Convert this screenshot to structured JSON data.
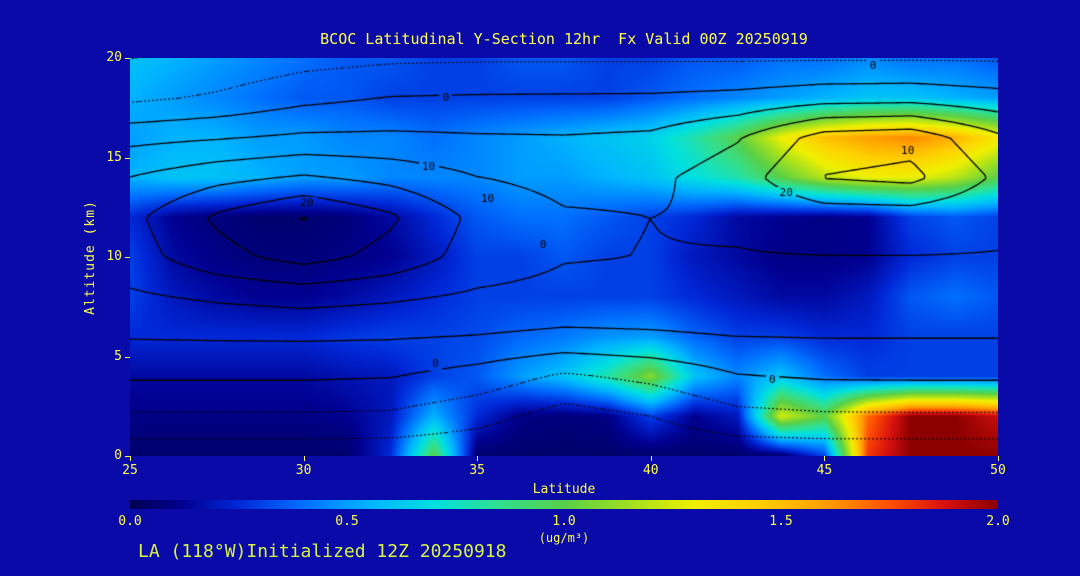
{
  "footer": "LA (118°W)Initialized 12Z 20250918",
  "colors": {
    "background": "#0a0aa8",
    "title_text": "#ffff50",
    "axis_text": "#ffff50",
    "footer_text": "#d8f544",
    "contour_line": "#000000"
  },
  "axes": {
    "x": {
      "label": "Latitude",
      "min": 25,
      "max": 50,
      "ticks": [
        25,
        30,
        35,
        40,
        45,
        50
      ]
    },
    "y": {
      "label": "Altitude (km)",
      "min": 0,
      "max": 20,
      "ticks": [
        0,
        5,
        10,
        15,
        20
      ]
    }
  },
  "colorbar": {
    "min": 0,
    "max": 2,
    "ticks": [
      "0.0",
      "0.5",
      "1.0",
      "1.5",
      "2.0"
    ],
    "unit": "(ug/m³)",
    "stops": [
      {
        "v": 0.0,
        "c": "#000050"
      },
      {
        "v": 0.12,
        "c": "#000090"
      },
      {
        "v": 0.25,
        "c": "#0028d8"
      },
      {
        "v": 0.4,
        "c": "#0070ff"
      },
      {
        "v": 0.55,
        "c": "#00b4ff"
      },
      {
        "v": 0.7,
        "c": "#00e0e0"
      },
      {
        "v": 0.85,
        "c": "#30e090"
      },
      {
        "v": 1.0,
        "c": "#58d048"
      },
      {
        "v": 1.15,
        "c": "#a0e020"
      },
      {
        "v": 1.3,
        "c": "#f0f000"
      },
      {
        "v": 1.45,
        "c": "#ffd000"
      },
      {
        "v": 1.6,
        "c": "#ffa000"
      },
      {
        "v": 1.75,
        "c": "#ff5000"
      },
      {
        "v": 1.88,
        "c": "#d81010"
      },
      {
        "v": 2.0,
        "c": "#8c0000"
      }
    ]
  },
  "chart_data": {
    "type": "heatmap",
    "title": "BCOC Latitudinal Y-Section 12hr  Fx Valid 00Z 20250919",
    "xlabel": "Latitude",
    "ylabel": "Altitude (km)",
    "fill_units": "ug/m³",
    "fill_range": [
      0,
      2
    ],
    "x": [
      25,
      26.25,
      27.5,
      28.75,
      30,
      31.25,
      32.5,
      33.75,
      35,
      36.25,
      37.5,
      38.75,
      40,
      41.25,
      42.5,
      43.75,
      45,
      46.25,
      47.5,
      48.75,
      50
    ],
    "y": [
      0,
      2,
      4,
      6,
      8,
      10,
      12,
      14,
      16,
      18,
      20
    ],
    "values": [
      [
        0.05,
        0.05,
        0.05,
        0.05,
        0.05,
        0.05,
        0.25,
        1.0,
        0.05,
        0.05,
        0.05,
        0.05,
        0.05,
        0.05,
        0.05,
        0.05,
        0.3,
        1.8,
        2.0,
        2.0,
        2.0
      ],
      [
        0.1,
        0.1,
        0.1,
        0.1,
        0.1,
        0.12,
        0.2,
        0.55,
        0.25,
        0.1,
        0.08,
        0.1,
        0.3,
        0.12,
        0.2,
        1.25,
        1.0,
        1.7,
        2.0,
        2.0,
        1.9
      ],
      [
        0.15,
        0.15,
        0.15,
        0.15,
        0.15,
        0.18,
        0.2,
        0.3,
        0.35,
        0.5,
        0.6,
        0.8,
        1.1,
        0.6,
        0.45,
        0.6,
        0.4,
        0.3,
        0.3,
        0.3,
        0.3
      ],
      [
        0.25,
        0.25,
        0.25,
        0.25,
        0.25,
        0.28,
        0.3,
        0.3,
        0.32,
        0.38,
        0.42,
        0.48,
        0.5,
        0.38,
        0.3,
        0.3,
        0.25,
        0.25,
        0.3,
        0.3,
        0.3
      ],
      [
        0.3,
        0.2,
        0.15,
        0.12,
        0.12,
        0.15,
        0.2,
        0.25,
        0.3,
        0.3,
        0.3,
        0.3,
        0.3,
        0.25,
        0.2,
        0.15,
        0.15,
        0.2,
        0.35,
        0.4,
        0.35
      ],
      [
        0.3,
        0.15,
        0.1,
        0.08,
        0.08,
        0.1,
        0.12,
        0.2,
        0.3,
        0.3,
        0.35,
        0.3,
        0.3,
        0.2,
        0.15,
        0.1,
        0.1,
        0.12,
        0.25,
        0.3,
        0.3
      ],
      [
        0.25,
        0.12,
        0.08,
        0.06,
        0.06,
        0.08,
        0.15,
        0.25,
        0.35,
        0.4,
        0.4,
        0.35,
        0.3,
        0.25,
        0.15,
        0.12,
        0.1,
        0.12,
        0.3,
        0.35,
        0.3
      ],
      [
        0.55,
        0.6,
        0.6,
        0.55,
        0.5,
        0.5,
        0.45,
        0.45,
        0.45,
        0.5,
        0.5,
        0.55,
        0.6,
        0.7,
        0.8,
        1.0,
        1.2,
        1.3,
        1.3,
        1.2,
        1.0
      ],
      [
        0.5,
        0.55,
        0.55,
        0.5,
        0.5,
        0.45,
        0.45,
        0.4,
        0.45,
        0.5,
        0.55,
        0.6,
        0.65,
        0.8,
        1.0,
        1.3,
        1.5,
        1.6,
        1.65,
        1.55,
        1.35
      ],
      [
        0.55,
        0.5,
        0.45,
        0.4,
        0.35,
        0.35,
        0.3,
        0.3,
        0.3,
        0.3,
        0.3,
        0.3,
        0.35,
        0.4,
        0.45,
        0.5,
        0.55,
        0.6,
        0.6,
        0.55,
        0.5
      ],
      [
        0.6,
        0.55,
        0.5,
        0.45,
        0.4,
        0.35,
        0.35,
        0.3,
        0.3,
        0.35,
        0.35,
        0.3,
        0.3,
        0.35,
        0.35,
        0.4,
        0.4,
        0.45,
        0.4,
        0.4,
        0.35
      ]
    ],
    "overlay_contours": {
      "x": [
        25,
        27.5,
        30,
        32.5,
        35,
        37.5,
        40,
        42.5,
        45,
        47.5,
        50
      ],
      "y": [
        0,
        2,
        4,
        6,
        8,
        10,
        12,
        14,
        16,
        18,
        20
      ],
      "values": [
        [
          -13.3,
          -13.3,
          -13.3,
          -13.4,
          -13.8,
          -14.6,
          -14.2,
          -13.5,
          -13.3,
          -13.3,
          -13.3
        ],
        [
          -5.6,
          -5.6,
          -5.6,
          -5.9,
          -8.3,
          -12.0,
          -10.0,
          -6.5,
          -5.7,
          -5.6,
          -5.6
        ],
        [
          0.6,
          0.6,
          0.6,
          0.2,
          -2.1,
          -5.8,
          -3.8,
          -0.3,
          0.5,
          0.6,
          0.6
        ],
        [
          5.3,
          5.5,
          5.6,
          5.4,
          4.8,
          3.9,
          4.3,
          5.0,
          5.2,
          5.2,
          5.2
        ],
        [
          9.2,
          10.8,
          11.8,
          10.8,
          9.2,
          8.5,
          8.3,
          8.3,
          8.3,
          8.3,
          8.3
        ],
        [
          12.8,
          18.3,
          21.9,
          18.3,
          12.8,
          10.3,
          9.9,
          9.8,
          9.9,
          9.9,
          9.8
        ],
        [
          13.7,
          20.8,
          25.3,
          20.8,
          13.7,
          10.5,
          10.0,
          10.6,
          12.2,
          12.4,
          11.0
        ],
        [
          10.1,
          13.5,
          15.6,
          13.5,
          10.1,
          8.6,
          8.9,
          12.7,
          20.2,
          21.3,
          14.1
        ],
        [
          3.5,
          4.6,
          5.9,
          6.0,
          5.5,
          5.3,
          5.9,
          9.6,
          17.1,
          18.2,
          11.0
        ],
        [
          -6.1,
          -4.3,
          -1.4,
          0.2,
          0.5,
          0.6,
          0.7,
          1.4,
          2.9,
          3.2,
          1.7
        ],
        [
          -10.1,
          -8.9,
          -6.9,
          -5.9,
          -5.6,
          -5.6,
          -5.6,
          -5.6,
          -5.5,
          -5.5,
          -5.6
        ]
      ],
      "levels_solid": [
        0,
        5,
        10,
        15,
        20,
        25
      ],
      "levels_dashed": [
        -10,
        -5
      ],
      "labels": [
        {
          "text": "20",
          "lat": 30.1,
          "alt": 12.7
        },
        {
          "text": "10",
          "lat": 33.6,
          "alt": 14.5
        },
        {
          "text": "10",
          "lat": 35.3,
          "alt": 12.9
        },
        {
          "text": "0",
          "lat": 34.1,
          "alt": 18.0
        },
        {
          "text": "0",
          "lat": 36.9,
          "alt": 10.6
        },
        {
          "text": "0",
          "lat": 46.4,
          "alt": 19.6
        },
        {
          "text": "10",
          "lat": 47.4,
          "alt": 15.3
        },
        {
          "text": "20",
          "lat": 43.9,
          "alt": 13.2
        },
        {
          "text": "0",
          "lat": 43.5,
          "alt": 3.8
        },
        {
          "text": "0",
          "lat": 33.8,
          "alt": 4.6
        }
      ]
    }
  }
}
